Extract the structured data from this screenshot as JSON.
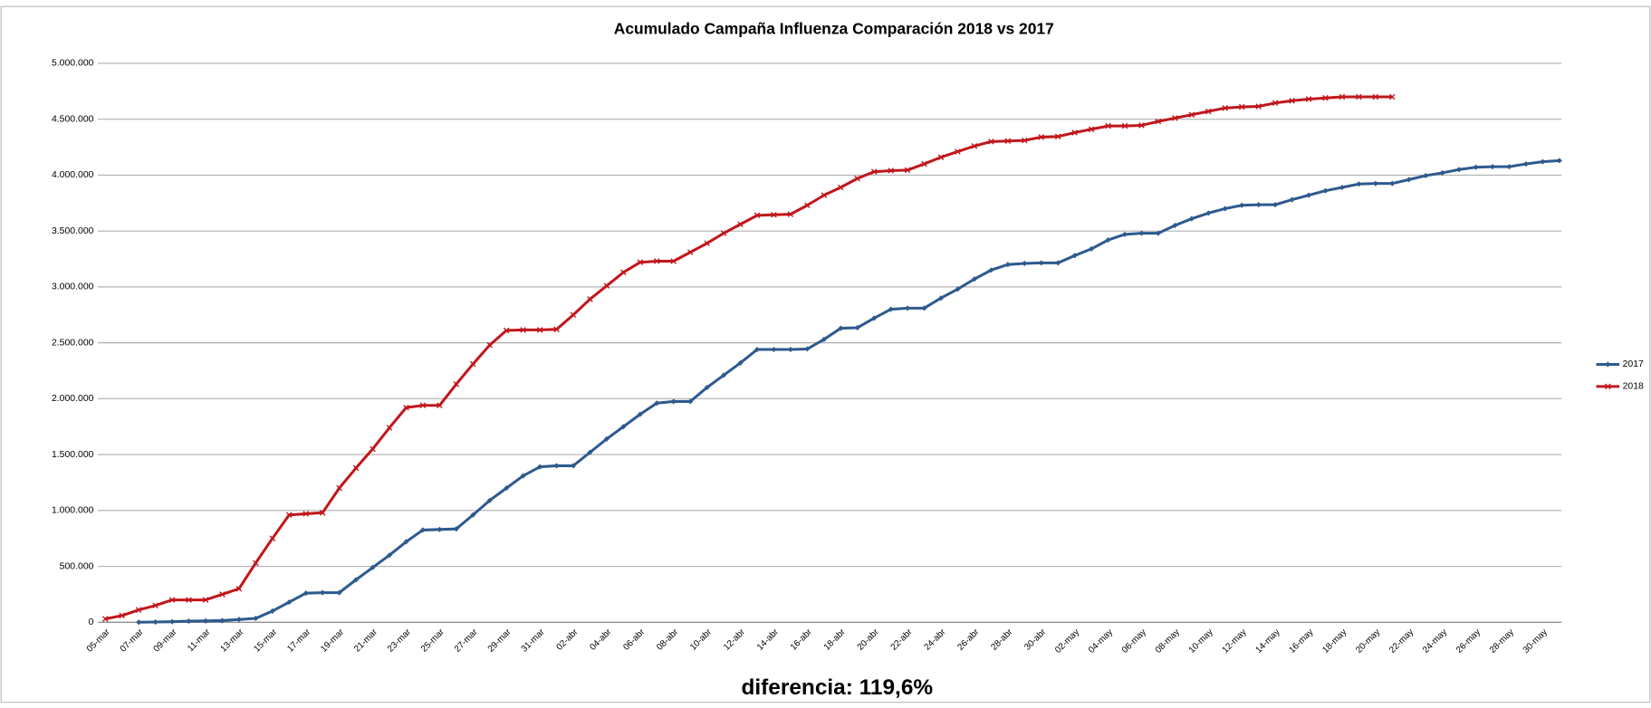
{
  "chart_data": {
    "type": "line",
    "title": "Acumulado Campaña Influenza Comparación 2018 vs 2017",
    "annotation": "diferencia:  119,6%",
    "categories": [
      "05-mar",
      null,
      "07-mar",
      null,
      "09-mar",
      null,
      "11-mar",
      null,
      "13-mar",
      null,
      "15-mar",
      null,
      "17-mar",
      null,
      "19-mar",
      null,
      "21-mar",
      null,
      "23-mar",
      null,
      "25-mar",
      null,
      "27-mar",
      null,
      "29-mar",
      null,
      "31-mar",
      null,
      "02-abr",
      null,
      "04-abr",
      null,
      "06-abr",
      null,
      "08-abr",
      null,
      "10-abr",
      null,
      "12-abr",
      null,
      "14-abr",
      null,
      "16-abr",
      null,
      "18-abr",
      null,
      "20-abr",
      null,
      "22-abr",
      null,
      "24-abr",
      null,
      "26-abr",
      null,
      "28-abr",
      null,
      "30-abr",
      null,
      "02-may",
      null,
      "04-may",
      null,
      "06-may",
      null,
      "08-may",
      null,
      "10-may",
      null,
      "12-may",
      null,
      "14-may",
      null,
      "16-may",
      null,
      "18-may",
      null,
      "20-may",
      null,
      "22-may",
      null,
      "24-may",
      null,
      "26-may",
      null,
      "28-may",
      null,
      "30-may",
      null
    ],
    "series": [
      {
        "name": "2017",
        "color": "#2e5a8e",
        "marker": "diamond",
        "values": [
          null,
          null,
          0,
          2000,
          5000,
          10000,
          12000,
          15000,
          25000,
          35000,
          100000,
          180000,
          260000,
          265000,
          265000,
          380000,
          490000,
          600000,
          720000,
          825000,
          830000,
          835000,
          960000,
          1090000,
          1200000,
          1310000,
          1390000,
          1400000,
          1400000,
          1520000,
          1640000,
          1750000,
          1860000,
          1960000,
          1975000,
          1975000,
          2100000,
          2210000,
          2320000,
          2440000,
          2440000,
          2440000,
          2445000,
          2530000,
          2630000,
          2635000,
          2720000,
          2800000,
          2810000,
          2810000,
          2900000,
          2980000,
          3070000,
          3150000,
          3200000,
          3210000,
          3215000,
          3215000,
          3280000,
          3340000,
          3420000,
          3470000,
          3480000,
          3480000,
          3550000,
          3610000,
          3660000,
          3700000,
          3730000,
          3735000,
          3735000,
          3780000,
          3820000,
          3860000,
          3890000,
          3920000,
          3925000,
          3925000,
          3960000,
          3995000,
          4020000,
          4050000,
          4070000,
          4075000,
          4075000,
          4100000,
          4120000,
          4130000
        ]
      },
      {
        "name": "2018",
        "color": "#c0171c",
        "marker": "x",
        "values": [
          30000,
          60000,
          110000,
          150000,
          200000,
          200000,
          200000,
          250000,
          300000,
          530000,
          750000,
          960000,
          970000,
          980000,
          1200000,
          1380000,
          1550000,
          1740000,
          1920000,
          1940000,
          1940000,
          2130000,
          2310000,
          2480000,
          2610000,
          2615000,
          2615000,
          2620000,
          2750000,
          2890000,
          3010000,
          3130000,
          3220000,
          3230000,
          3230000,
          3310000,
          3390000,
          3480000,
          3560000,
          3640000,
          3645000,
          3650000,
          3730000,
          3820000,
          3890000,
          3970000,
          4030000,
          4040000,
          4045000,
          4100000,
          4160000,
          4210000,
          4260000,
          4300000,
          4305000,
          4310000,
          4340000,
          4345000,
          4380000,
          4410000,
          4440000,
          4440000,
          4445000,
          4480000,
          4510000,
          4540000,
          4570000,
          4600000,
          4610000,
          4615000,
          4645000,
          4665000,
          4680000,
          4690000,
          4700000,
          4700000,
          4700000,
          4700000,
          null,
          null,
          null,
          null,
          null,
          null,
          null,
          null,
          null,
          null
        ]
      }
    ],
    "ylim": [
      0,
      5000000
    ],
    "yticks": [
      0,
      {
        "value": 500000,
        "label": "500.000"
      },
      {
        "value": 1000000,
        "label": "1.000.000"
      },
      {
        "value": 1500000,
        "label": "1.500.000"
      },
      {
        "value": 2000000,
        "label": "2.000.000"
      },
      {
        "value": 2500000,
        "label": "2.500.000"
      },
      {
        "value": 3000000,
        "label": "3.000.000"
      },
      {
        "value": 3500000,
        "label": "3.500.000"
      },
      {
        "value": 4000000,
        "label": "4.000.000"
      },
      {
        "value": 4500000,
        "label": "4.500.000"
      },
      {
        "value": 5000000,
        "label": "5.000.000"
      }
    ],
    "grid": true,
    "legend": "right"
  }
}
